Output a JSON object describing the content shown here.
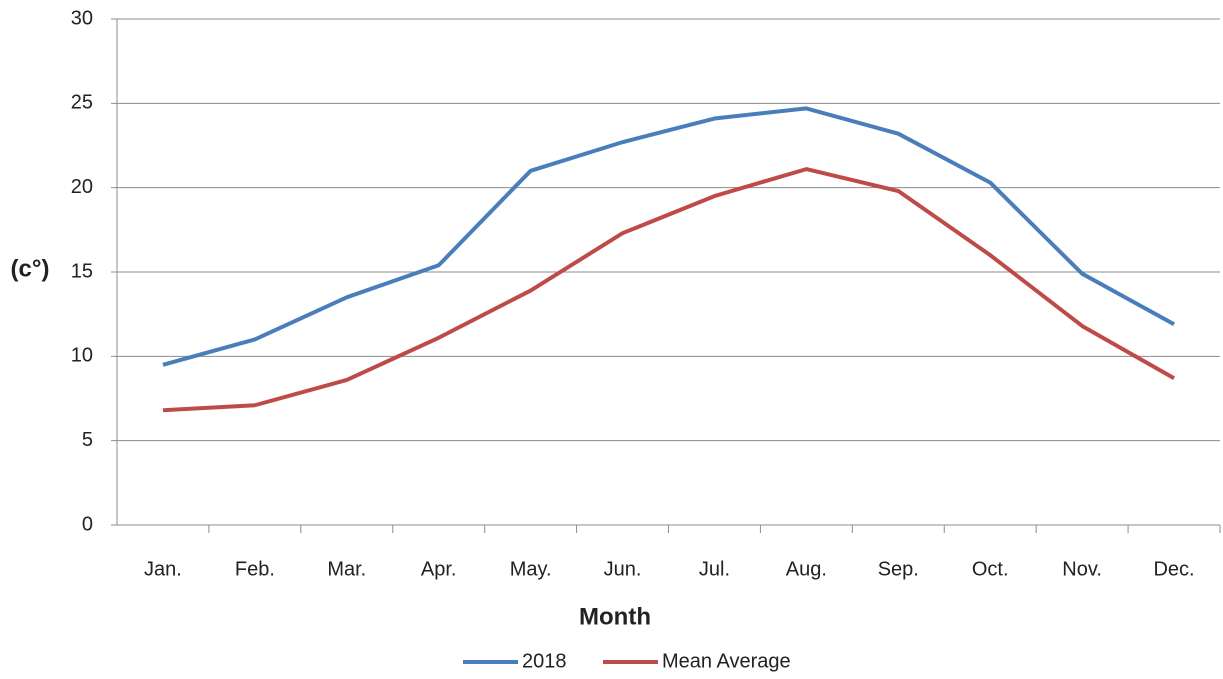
{
  "chart_data": {
    "type": "line",
    "y_label": "(c°)",
    "x_label": "Month",
    "categories": [
      "Jan.",
      "Feb.",
      "Mar.",
      "Apr.",
      "May.",
      "Jun.",
      "Jul.",
      "Aug.",
      "Sep.",
      "Oct.",
      "Nov.",
      "Dec."
    ],
    "series": [
      {
        "name": "2018",
        "color": "#4a7ebb",
        "values": [
          9.5,
          11.0,
          13.5,
          15.4,
          21.0,
          22.7,
          24.1,
          24.7,
          23.2,
          20.3,
          14.9,
          11.9
        ]
      },
      {
        "name": "Mean Average",
        "color": "#be4b48",
        "values": [
          6.8,
          7.1,
          8.6,
          11.1,
          13.9,
          17.3,
          19.5,
          21.1,
          19.8,
          16.0,
          11.8,
          8.7
        ]
      }
    ],
    "ylim": [
      0,
      30
    ],
    "yticks": [
      0,
      5,
      10,
      15,
      20,
      25,
      30
    ],
    "grid": true,
    "legend": "bottom"
  }
}
